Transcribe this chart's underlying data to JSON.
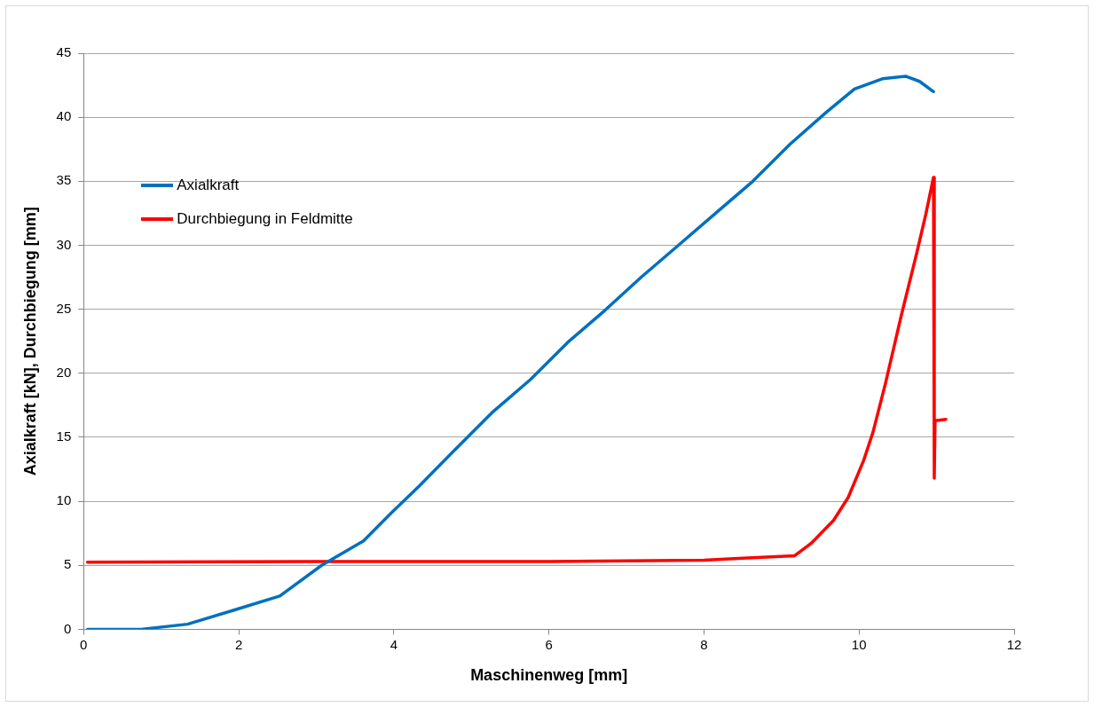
{
  "chart_data": {
    "type": "line",
    "xlabel": "Maschinenweg [mm]",
    "ylabel": "Axialkraft [kN], Durchbiegung [mm]",
    "xlim": [
      0,
      12
    ],
    "xticks": [
      0,
      2,
      4,
      6,
      8,
      10,
      12
    ],
    "ylim": [
      0,
      45
    ],
    "yticks": [
      0,
      5,
      10,
      15,
      20,
      25,
      30,
      35,
      40,
      45
    ],
    "grid": "y",
    "legend": "top left",
    "marker": "none",
    "line_style": "solid",
    "series": [
      {
        "name": "Axialkraft",
        "color": "#0070c0",
        "x": [
          0.05,
          0.74,
          1.34,
          1.94,
          2.53,
          3.07,
          3.61,
          3.97,
          4.33,
          4.8,
          5.28,
          5.76,
          6.24,
          6.72,
          7.19,
          7.67,
          8.15,
          8.63,
          9.11,
          9.58,
          9.94,
          10.3,
          10.6,
          10.78,
          10.96
        ],
        "values": [
          0,
          0,
          0.4,
          1.5,
          2.6,
          5,
          6.9,
          9.1,
          11.2,
          14.1,
          17,
          19.5,
          22.4,
          24.9,
          27.5,
          30,
          32.5,
          35,
          37.9,
          40.4,
          42.2,
          43,
          43.2,
          42.8,
          42
        ]
      },
      {
        "name": "Durchbiegung in Feldmitte",
        "color": "#ff0000",
        "x": [
          0.05,
          3,
          6,
          8,
          8.5,
          9.17,
          9.38,
          9.67,
          9.86,
          10.06,
          10.18,
          10.34,
          10.54,
          10.74,
          10.86,
          10.96,
          10.97,
          10.98,
          11.12
        ],
        "values": [
          5.25,
          5.3,
          5.3,
          5.4,
          5.55,
          5.75,
          6.7,
          8.5,
          10.3,
          13.2,
          15.4,
          19.2,
          24.4,
          29.3,
          32.4,
          35.3,
          11.8,
          16.3,
          16.4
        ]
      }
    ]
  }
}
